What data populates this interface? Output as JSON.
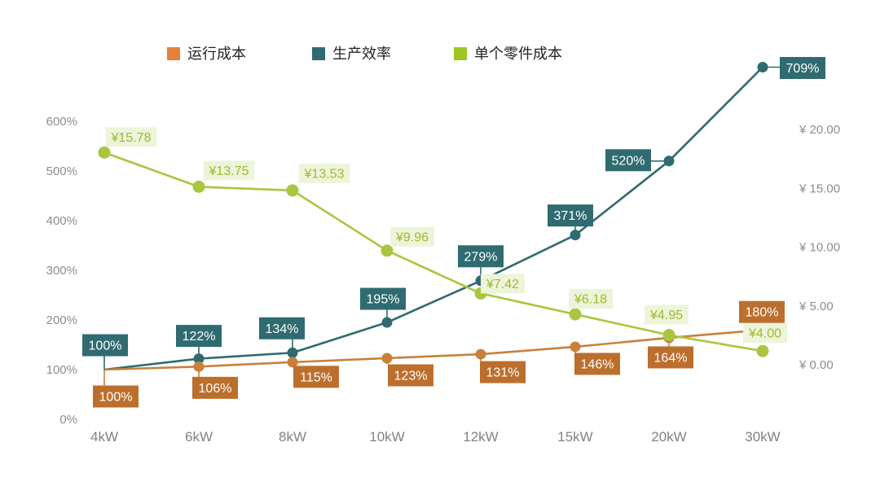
{
  "chart_data": {
    "type": "line",
    "title": "",
    "categories": [
      "4kW",
      "6kW",
      "8kW",
      "10kW",
      "12kW",
      "15kW",
      "20kW",
      "30kW"
    ],
    "series": [
      {
        "key": "operating-cost",
        "name": "运行成本",
        "axis": "left",
        "line_color": "#C8813C",
        "label_bg": "#BC6F2D",
        "label_text_color": "#FFFFFF",
        "legend_color": "#E8803A",
        "values": [
          100,
          106,
          115,
          123,
          131,
          146,
          164,
          180
        ],
        "labels": [
          "100%",
          "106%",
          "115%",
          "123%",
          "131%",
          "146%",
          "164%",
          "180%"
        ]
      },
      {
        "key": "production-efficiency",
        "name": "生产效率",
        "axis": "left",
        "line_color": "#2F6B70",
        "label_bg": "#2F6B70",
        "label_text_color": "#FFFFFF",
        "legend_color": "#2F6B70",
        "values": [
          100,
          122,
          134,
          195,
          279,
          371,
          520,
          709
        ],
        "labels": [
          "100%",
          "122%",
          "134%",
          "195%",
          "279%",
          "371%",
          "520%",
          "709%"
        ]
      },
      {
        "key": "unit-part-cost",
        "name": "单个零件成本",
        "axis": "right",
        "line_color": "#A8C63F",
        "label_bg": "#EEF4D9",
        "label_text_color": "#9CBB2E",
        "legend_color": "#9FC522",
        "values": [
          15.78,
          13.75,
          13.53,
          9.96,
          7.42,
          6.18,
          4.95,
          4.0
        ],
        "labels": [
          "¥15.78",
          "¥13.75",
          "¥13.53",
          "¥9.96",
          "¥7.42",
          "¥6.18",
          "¥4.95",
          "¥4.00"
        ]
      }
    ],
    "left_axis": {
      "tick_values": [
        0,
        100,
        200,
        300,
        400,
        500,
        600
      ],
      "tick_labels": [
        "0%",
        "100%",
        "200%",
        "300%",
        "400%",
        "500%",
        "600%"
      ],
      "range": [
        0,
        600
      ]
    },
    "right_axis": {
      "tick_values": [
        0,
        5,
        10,
        15,
        20
      ],
      "tick_labels": [
        "¥ 0.00",
        "¥ 5.00",
        "¥ 10.00",
        "¥ 15.00",
        "¥ 20.00"
      ],
      "range": [
        0,
        20
      ]
    },
    "legend": [
      "运行成本",
      "生产效率",
      "单个零件成本"
    ],
    "grid": "off",
    "legend_position": "top",
    "background": "#FFFFFF"
  }
}
